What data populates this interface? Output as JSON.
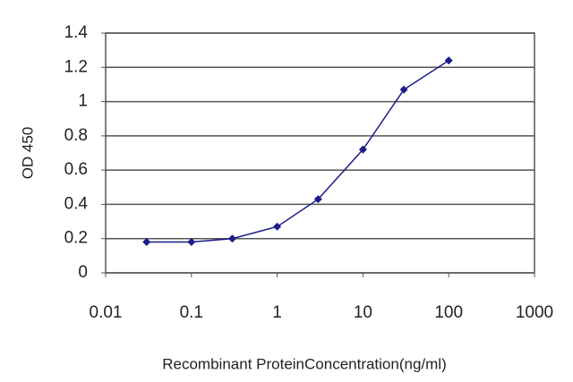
{
  "chart_data": {
    "type": "line",
    "x_label": "Recombinant ProteinConcentration(ng/ml)",
    "y_label": "OD 450",
    "x": [
      0.03,
      0.1,
      0.3,
      1,
      3,
      10,
      30,
      100
    ],
    "series": [
      {
        "color": "#1c1c8a",
        "values": [
          0.18,
          0.18,
          0.2,
          0.27,
          0.43,
          0.72,
          1.07,
          1.24
        ]
      }
    ],
    "xlim": [
      0.01,
      1000
    ],
    "xticks": [
      0.01,
      0.1,
      1,
      10,
      100,
      1000
    ],
    "xscale": "log",
    "ylim": [
      0,
      1.4
    ],
    "yticks": [
      0,
      0.2,
      0.4,
      0.6,
      0.8,
      1,
      1.2,
      1.4
    ],
    "grid": true
  }
}
